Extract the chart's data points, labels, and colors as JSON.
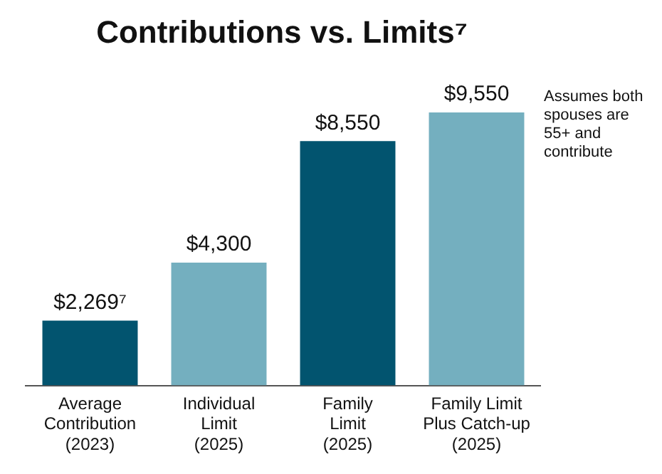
{
  "chart_data": {
    "type": "bar",
    "title": "Contributions vs. Limits⁷",
    "categories": [
      "Average\nContribution\n(2023)",
      "Individual\nLimit\n(2025)",
      "Family\nLimit\n(2025)",
      "Family Limit\nPlus Catch-up\n(2025)"
    ],
    "values": [
      2269,
      4300,
      8550,
      9550
    ],
    "colors": [
      "#02546f",
      "#74afbf",
      "#02546f",
      "#74afbf"
    ],
    "value_labels": [
      "$2,269⁷",
      "$4,300",
      "$8,550",
      "$9,550"
    ],
    "annotations": [
      "Assumes both spouses are 55+ and contribute"
    ],
    "grid": false,
    "legend": false
  }
}
